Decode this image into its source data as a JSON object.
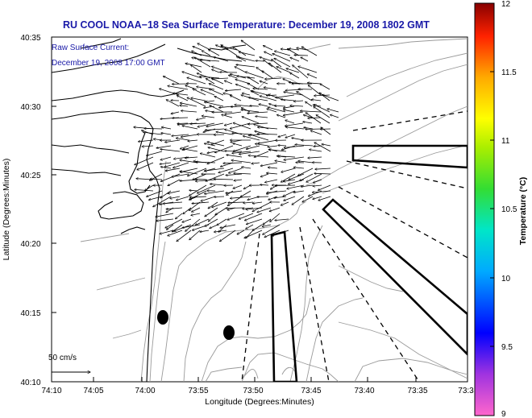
{
  "title": "RU COOL  NOAA−18  Sea Surface Temperature:  December 19, 2008 1802 GMT",
  "current_label_line1": "Raw Surface Current:",
  "current_label_line2": "December 19, 2008 17:00 GMT",
  "scale_label": "50 cm/s",
  "x_axis_label": "Longitude (Degrees:Minutes)",
  "y_axis_label": "Latitude (Degrees:Minutes)",
  "x_ticks": [
    "74:10",
    "74:05",
    "74:00",
    "73:55",
    "73:50",
    "73:45",
    "73:40",
    "73:35",
    "73:3"
  ],
  "y_ticks": [
    "40:35",
    "40:30",
    "40:25",
    "40:20",
    "40:15",
    "40:10"
  ],
  "colorbar": {
    "label": "Temperature (°C)",
    "ticks": [
      "12",
      "11.5",
      "11",
      "10.5",
      "10",
      "9.5",
      "9"
    ]
  },
  "colors": {
    "title_text": "#1a1aa8",
    "land_bg": "#ffffff",
    "contour": "#9a9a9a",
    "coast": "#000000"
  }
}
